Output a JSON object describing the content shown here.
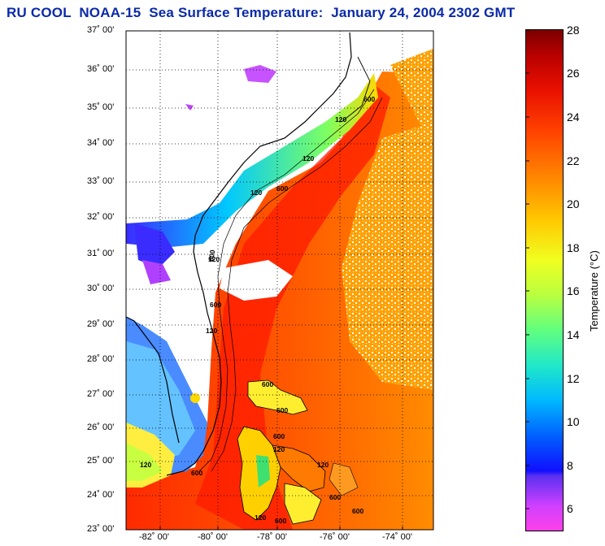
{
  "title": "RU COOL  NOAA-15  Sea Surface Temperature:  January 24, 2004 2302 GMT",
  "map": {
    "lat_labels": [
      "37˚ 00'",
      "36˚ 00'",
      "35˚ 00'",
      "34˚ 00'",
      "33˚ 00'",
      "32˚ 00'",
      "31˚ 00'",
      "30˚ 00'",
      "29˚ 00'",
      "28˚ 00'",
      "27˚ 00'",
      "26˚ 00'",
      "25˚ 00'",
      "24˚ 00'",
      "23˚ 00'"
    ],
    "lon_labels": [
      "-82˚ 00'",
      "-80˚ 00'",
      "-78˚ 00'",
      "-76˚ 00'",
      "-74˚ 00'"
    ],
    "isobath_labels": [
      "600",
      "120",
      "120",
      "600",
      "120",
      "600",
      "120",
      "600",
      "120",
      "600",
      "600",
      "600",
      "120",
      "120",
      "600",
      "120",
      "600",
      "600",
      "120",
      "600"
    ]
  },
  "colorbar": {
    "title": "Temperature (°C)",
    "ticks": [
      "28",
      "26",
      "24",
      "22",
      "20",
      "18",
      "16",
      "14",
      "12",
      "10",
      "8",
      "6"
    ],
    "range": [
      5,
      28
    ]
  }
}
